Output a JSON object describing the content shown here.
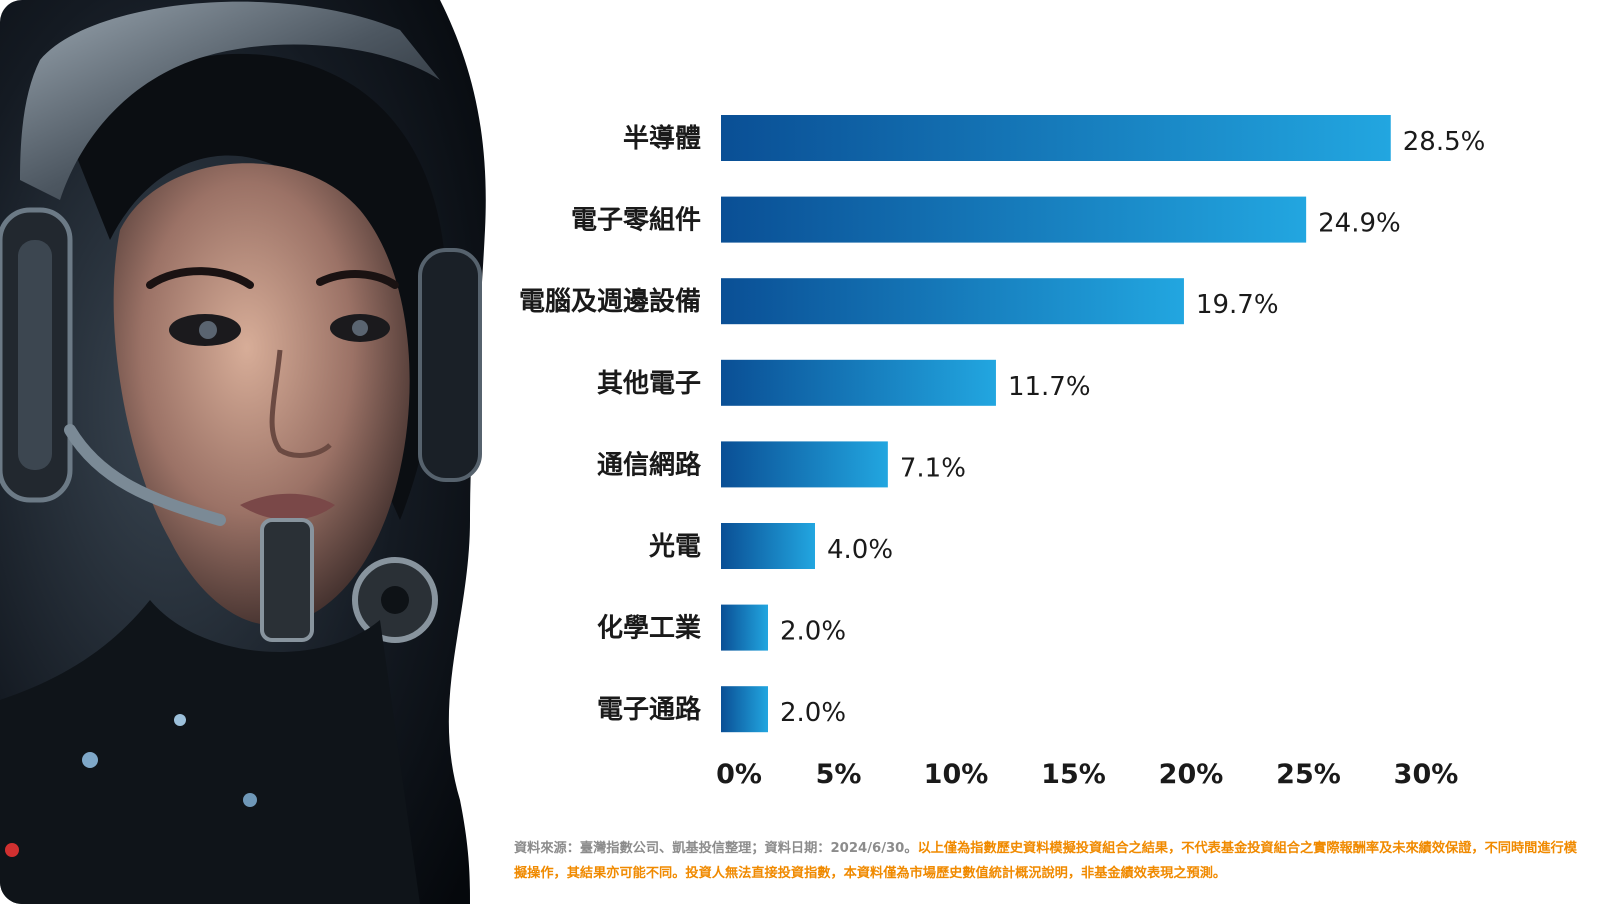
{
  "chart_data": {
    "type": "bar",
    "orientation": "horizontal",
    "categories": [
      "半導體",
      "電子零組件",
      "電腦及週邊設備",
      "其他電子",
      "通信網路",
      "光電",
      "化學工業",
      "電子通路"
    ],
    "values": [
      28.5,
      24.9,
      19.7,
      11.7,
      7.1,
      4.0,
      2.0,
      2.0
    ],
    "value_labels": [
      "28.5%",
      "24.9%",
      "19.7%",
      "11.7%",
      "7.1%",
      "4.0%",
      "2.0%",
      "2.0%"
    ],
    "xlim": [
      0,
      30
    ],
    "x_ticks": [
      0,
      5,
      10,
      15,
      20,
      25,
      30
    ],
    "x_tick_labels": [
      "0%",
      "5%",
      "10%",
      "15%",
      "20%",
      "25%",
      "30%"
    ],
    "grid": false,
    "bar_color_start": "#0a4f95",
    "bar_color_end": "#22a6e0"
  },
  "footnote": {
    "source": "資料來源：臺灣指數公司、凱基投信整理；資料日期：2024/6/30。",
    "disclaimer": "以上僅為指數歷史資料模擬投資組合之結果，不代表基金投資組合之實際報酬率及未來績效保證，不同時間進行模擬操作，其結果亦可能不同。投資人無法直接投資指數，本資料僅為市場歷史數值統計概況說明，非基金績效表現之預測。"
  }
}
